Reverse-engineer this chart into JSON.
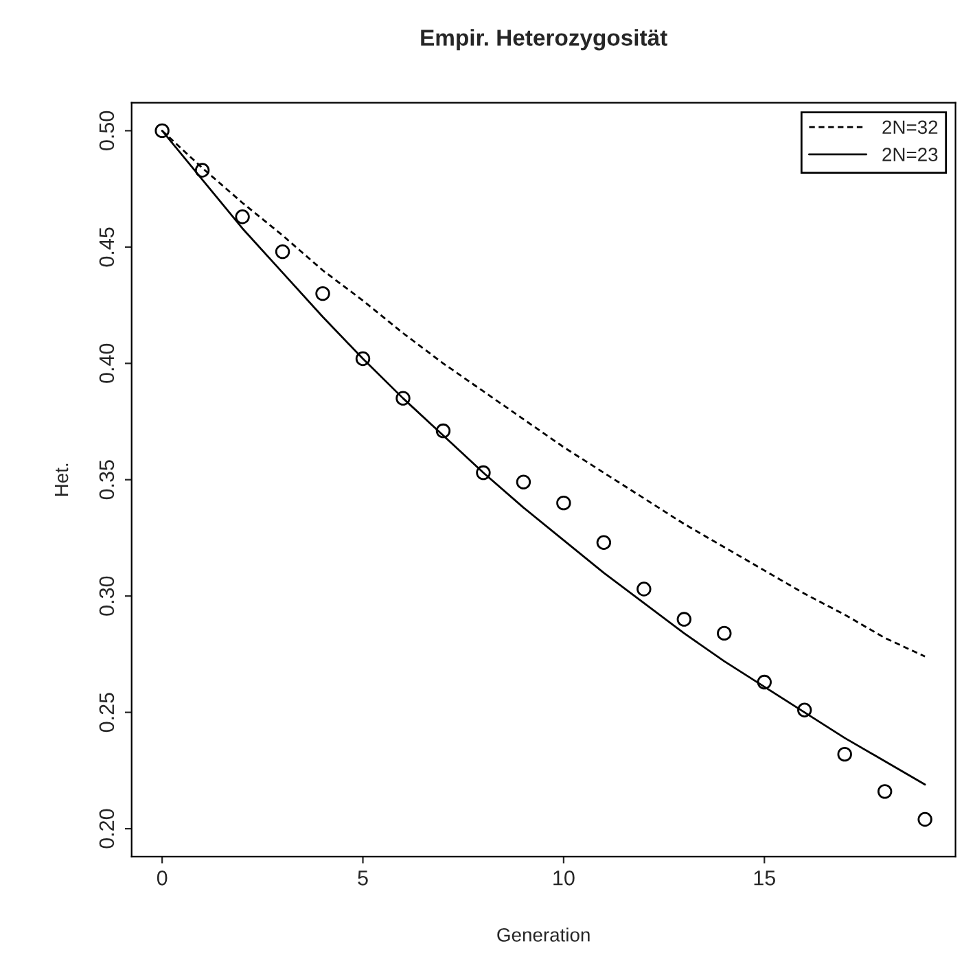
{
  "chart_data": {
    "type": "line",
    "title": "Empir. Heterozygosität",
    "xlabel": "Generation",
    "ylabel": "Het.",
    "x": [
      0,
      1,
      2,
      3,
      4,
      5,
      6,
      7,
      8,
      9,
      10,
      11,
      12,
      13,
      14,
      15,
      16,
      17,
      18,
      19
    ],
    "series": [
      {
        "name": "2N=32",
        "color": "#000000",
        "line_style": "dashed",
        "marker": "none",
        "values": [
          0.5,
          0.484,
          0.469,
          0.455,
          0.44,
          0.427,
          0.413,
          0.4,
          0.388,
          0.376,
          0.364,
          0.353,
          0.342,
          0.331,
          0.321,
          0.311,
          0.301,
          0.292,
          0.282,
          0.274
        ]
      },
      {
        "name": "2N=23",
        "color": "#000000",
        "line_style": "solid",
        "marker": "none",
        "values": [
          0.5,
          0.479,
          0.458,
          0.439,
          0.42,
          0.402,
          0.385,
          0.369,
          0.353,
          0.338,
          0.324,
          0.31,
          0.297,
          0.284,
          0.272,
          0.261,
          0.25,
          0.239,
          0.229,
          0.219
        ]
      },
      {
        "type": "scatter",
        "color": "#000000",
        "marker": "circle",
        "values": [
          0.5,
          0.483,
          0.463,
          0.448,
          0.43,
          0.402,
          0.385,
          0.371,
          0.353,
          0.349,
          0.34,
          0.323,
          0.303,
          0.29,
          0.284,
          0.263,
          0.251,
          0.232,
          0.216,
          0.204
        ]
      }
    ],
    "xlim": [
      -0.76,
      19.76
    ],
    "ylim": [
      0.188,
      0.512
    ],
    "xticks": [
      0,
      5,
      10,
      15
    ],
    "yticks": [
      {
        "value": 0.2,
        "label": "0.20"
      },
      {
        "value": 0.25,
        "label": "0.25"
      },
      {
        "value": 0.3,
        "label": "0.30"
      },
      {
        "value": 0.35,
        "label": "0.35"
      },
      {
        "value": 0.4,
        "label": "0.40"
      },
      {
        "value": 0.45,
        "label": "0.45"
      },
      {
        "value": 0.5,
        "label": "0.50"
      }
    ],
    "grid": false,
    "legend": "top right"
  }
}
